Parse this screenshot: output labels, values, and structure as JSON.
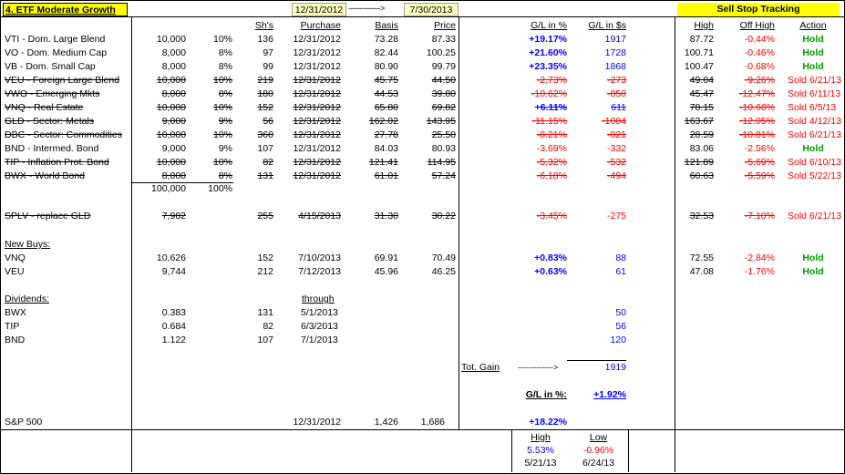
{
  "title": "4. ETF Moderate Growth",
  "start_date": "12/31/2012",
  "arrow_text": "-------------->",
  "end_date": "7/30/2013",
  "sell_stop_title": "Sell Stop Tracking",
  "headers": {
    "shares": "Sh's",
    "purchase": "Purchase",
    "basis": "Basis",
    "price": "Price",
    "gl_pct": "G/L in %",
    "gl_dollars": "G/L in $s",
    "high": "High",
    "off_high": "Off High",
    "action": "Action"
  },
  "holdings": [
    {
      "name": "VTI - Dom. Large Blend",
      "amount": "10,000",
      "pct": "10%",
      "shares": "136",
      "purchase": "12/31/2012",
      "basis": "73.28",
      "price": "87.33",
      "gl_pct": "+19.17%",
      "gl_dollars": "1917",
      "high": "87.72",
      "off_high": "-0.44%",
      "action": "Hold",
      "sold": false
    },
    {
      "name": "VO - Dom. Medium Cap",
      "amount": "8,000",
      "pct": "8%",
      "shares": "97",
      "purchase": "12/31/2012",
      "basis": "82.44",
      "price": "100.25",
      "gl_pct": "+21.60%",
      "gl_dollars": "1728",
      "high": "100.71",
      "off_high": "-0.46%",
      "action": "Hold",
      "sold": false
    },
    {
      "name": "VB - Dom. Small Cap",
      "amount": "8,000",
      "pct": "8%",
      "shares": "99",
      "purchase": "12/31/2012",
      "basis": "80.90",
      "price": "99.79",
      "gl_pct": "+23.35%",
      "gl_dollars": "1868",
      "high": "100.47",
      "off_high": "-0.68%",
      "action": "Hold",
      "sold": false
    },
    {
      "name": "VEU - Foreign Large Blend",
      "amount": "10,000",
      "pct": "10%",
      "shares": "219",
      "purchase": "12/31/2012",
      "basis": "45.75",
      "price": "44.50",
      "gl_pct": "-2.73%",
      "gl_dollars": "-273",
      "high": "49.04",
      "off_high": "-9.26%",
      "action": "Sold 6/21/13",
      "sold": true
    },
    {
      "name": "VWO - Emerging Mkts",
      "amount": "8,000",
      "pct": "8%",
      "shares": "180",
      "purchase": "12/31/2012",
      "basis": "44.53",
      "price": "39.80",
      "gl_pct": "-10.62%",
      "gl_dollars": "-850",
      "high": "45.47",
      "off_high": "-12.47%",
      "action": "Sold 6/11/13",
      "sold": true
    },
    {
      "name": "VNQ - Real Estate",
      "amount": "10,000",
      "pct": "10%",
      "shares": "152",
      "purchase": "12/31/2012",
      "basis": "65.80",
      "price": "69.82",
      "gl_pct": "+6.11%",
      "gl_dollars": "611",
      "high": "78.15",
      "off_high": "-10.66%",
      "action": "Sold 6/5/13",
      "sold": true
    },
    {
      "name": "GLD - Sector: Metals",
      "amount": "9,000",
      "pct": "9%",
      "shares": "56",
      "purchase": "12/31/2012",
      "basis": "162.02",
      "price": "143.95",
      "gl_pct": "-11.15%",
      "gl_dollars": "-1004",
      "high": "163.67",
      "off_high": "-12.05%",
      "action": "Sold 4/12/13",
      "sold": true
    },
    {
      "name": "DBC - Sector: Commodities",
      "amount": "10,000",
      "pct": "10%",
      "shares": "360",
      "purchase": "12/31/2012",
      "basis": "27.78",
      "price": "25.50",
      "gl_pct": "-8.21%",
      "gl_dollars": "-821",
      "high": "28.59",
      "off_high": "-10.81%",
      "action": "Sold 6/21/13",
      "sold": true
    },
    {
      "name": "BND - Intermed. Bond",
      "amount": "9,000",
      "pct": "9%",
      "shares": "107",
      "purchase": "12/31/2012",
      "basis": "84.03",
      "price": "80.93",
      "gl_pct": "-3.69%",
      "gl_dollars": "-332",
      "high": "83.06",
      "off_high": "-2.56%",
      "action": "Hold",
      "sold": false
    },
    {
      "name": "TIP - Inflation Prot. Bond",
      "amount": "10,000",
      "pct": "10%",
      "shares": "82",
      "purchase": "12/31/2012",
      "basis": "121.41",
      "price": "114.95",
      "gl_pct": "-5.32%",
      "gl_dollars": "-532",
      "high": "121.89",
      "off_high": "-5.69%",
      "action": "Sold 6/10/13",
      "sold": true
    },
    {
      "name": "BWX - World Bond",
      "amount": "8,000",
      "pct": "8%",
      "shares": "131",
      "purchase": "12/31/2012",
      "basis": "61.01",
      "price": "57.24",
      "gl_pct": "-6.18%",
      "gl_dollars": "-494",
      "high": "60.63",
      "off_high": "-5.59%",
      "action": "Sold 5/22/13",
      "sold": true
    }
  ],
  "totals": {
    "amount": "100,000",
    "pct": "100%"
  },
  "splv": {
    "name": "SPLV - replace GLD",
    "amount": "7,982",
    "shares": "255",
    "purchase": "4/15/2013",
    "basis": "31.30",
    "price": "30.22",
    "gl_pct": "-3.45%",
    "gl_dollars": "-275",
    "high": "32.53",
    "off_high": "-7.10%",
    "action": "Sold 6/21/13"
  },
  "new_buys_label": "New Buys:",
  "new_buys": [
    {
      "name": "VNQ",
      "amount": "10,626",
      "shares": "152",
      "purchase": "7/10/2013",
      "basis": "69.91",
      "price": "70.49",
      "gl_pct": "+0.83%",
      "gl_dollars": "88",
      "high": "72.55",
      "off_high": "-2.84%",
      "action": "Hold"
    },
    {
      "name": "VEU",
      "amount": "9,744",
      "shares": "212",
      "purchase": "7/12/2013",
      "basis": "45.96",
      "price": "46.25",
      "gl_pct": "+0.63%",
      "gl_dollars": "61",
      "high": "47.08",
      "off_high": "-1.76%",
      "action": "Hold"
    }
  ],
  "dividends_label": "Dividends:",
  "through_label": "through",
  "dividends": [
    {
      "name": "BWX",
      "amount": "0.383",
      "shares": "131",
      "through": "5/1/2013",
      "gl_dollars": "50"
    },
    {
      "name": "TIP",
      "amount": "0.684",
      "shares": "82",
      "through": "6/3/2013",
      "gl_dollars": "56"
    },
    {
      "name": "BND",
      "amount": "1.122",
      "shares": "107",
      "through": "7/1/2013",
      "gl_dollars": "120"
    }
  ],
  "tot_gain_label": "Tot. Gain",
  "tot_gain_arrow": "------------->",
  "tot_gain_value": "1919",
  "gl_pct_label": "G/L in %:",
  "gl_pct_value": "+1.92%",
  "sp500": {
    "name": "S&P 500",
    "date": "12/31/2012",
    "start": "1,426",
    "end": "1,686",
    "gl_pct": "+18.22%"
  },
  "hilo": {
    "high_label": "High",
    "low_label": "Low",
    "high_pct": "5.53%",
    "low_pct": "-0.96%",
    "high_date": "5/21/13",
    "low_date": "6/24/13"
  }
}
